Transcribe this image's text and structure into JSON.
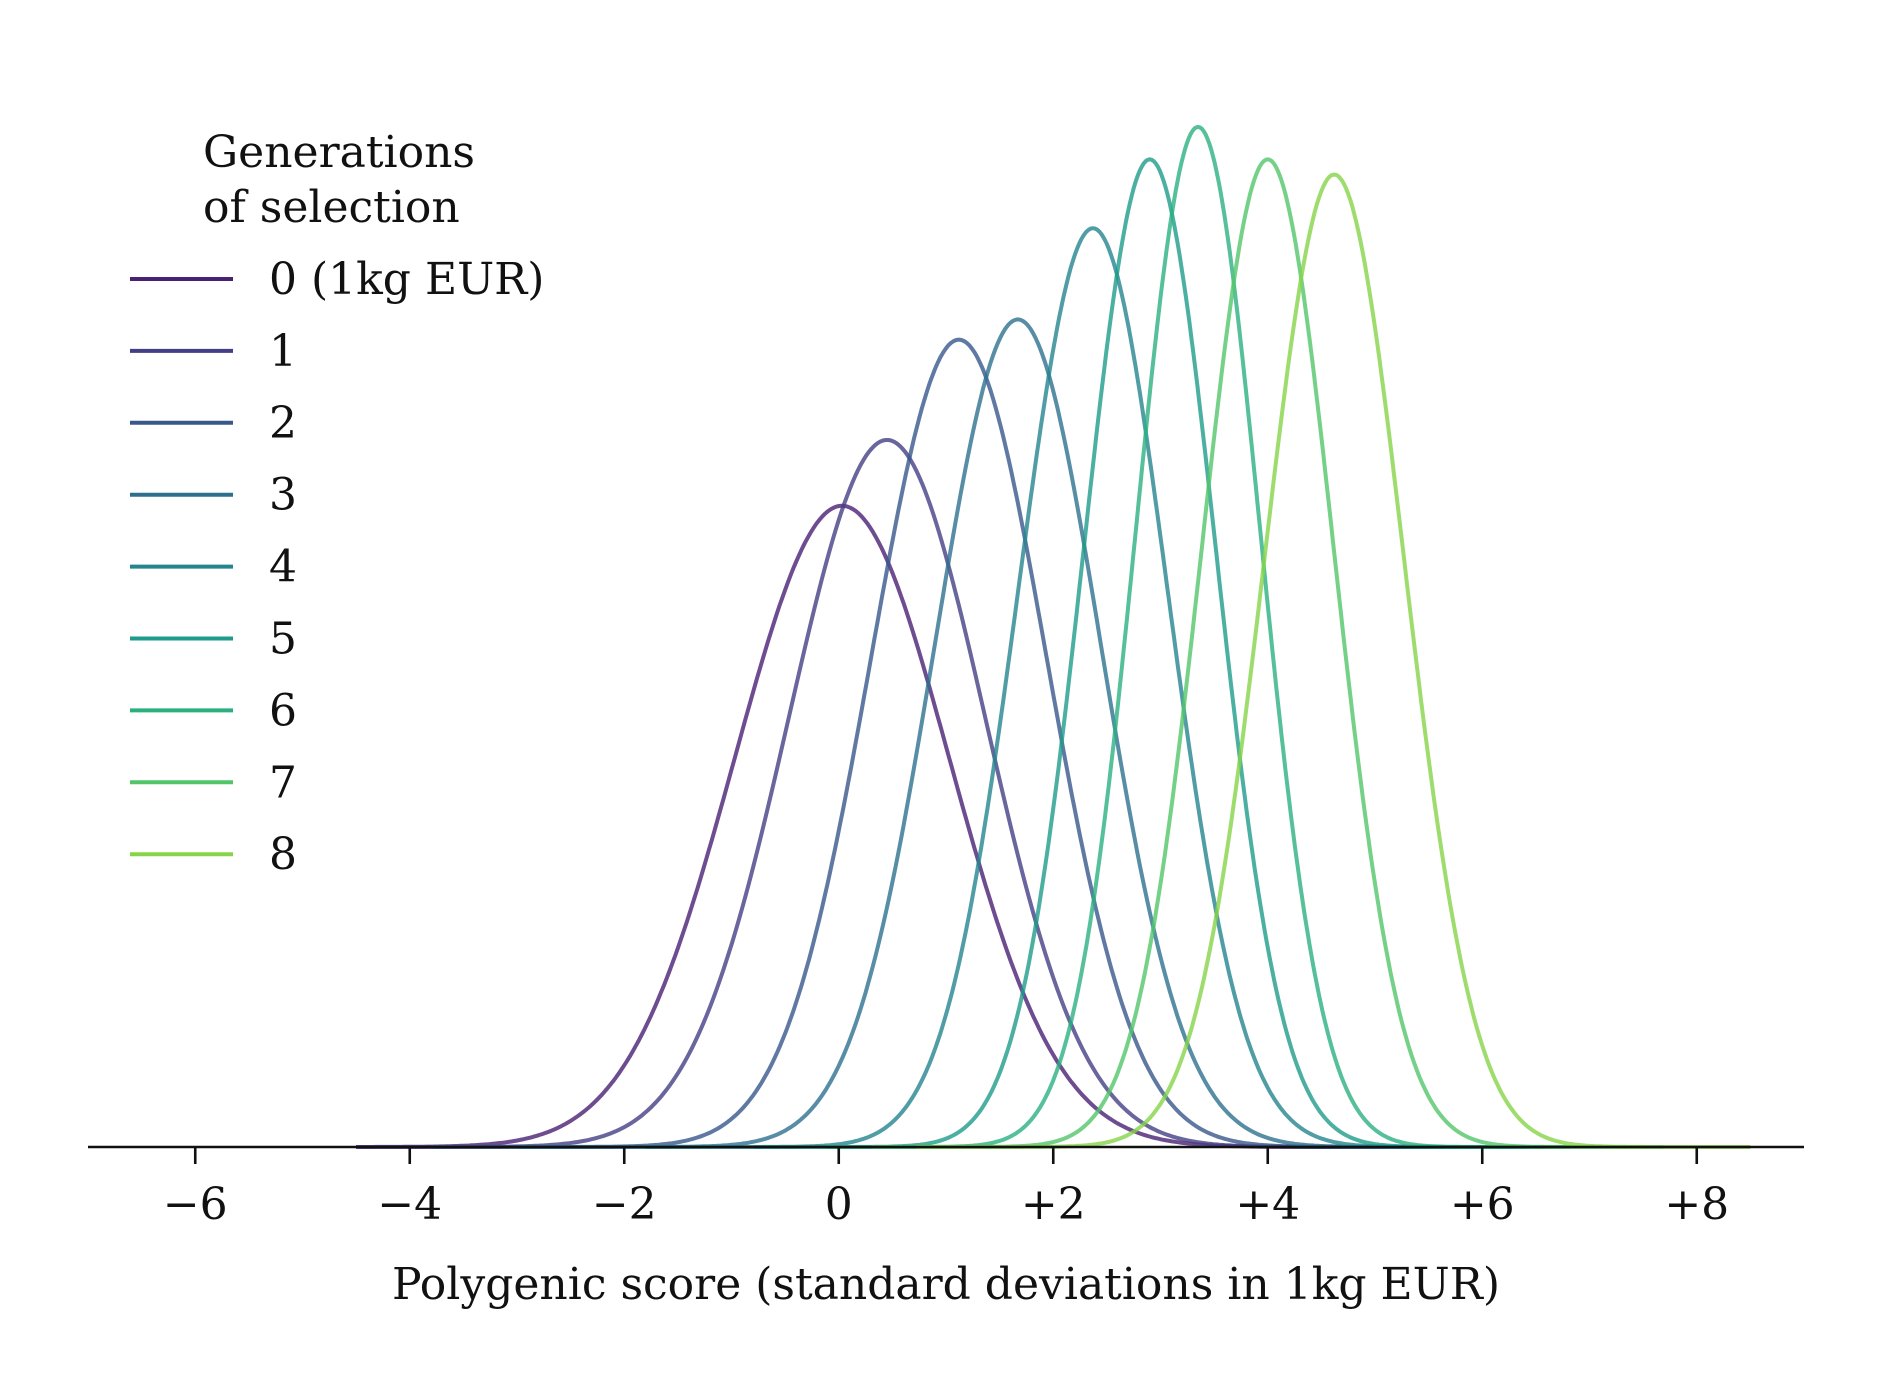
{
  "chart_data": {
    "type": "line",
    "title": "",
    "xlabel": "Polygenic score (standard deviations in 1kg EUR)",
    "ylabel": "",
    "xlim": [
      -7,
      9
    ],
    "x_ticks": [
      {
        "value": -6,
        "label": "−6"
      },
      {
        "value": -4,
        "label": "−4"
      },
      {
        "value": -2,
        "label": "−2"
      },
      {
        "value": 0,
        "label": "0"
      },
      {
        "value": 2,
        "label": "+2"
      },
      {
        "value": 4,
        "label": "+4"
      },
      {
        "value": 6,
        "label": "+6"
      },
      {
        "value": 8,
        "label": "+8"
      }
    ],
    "y_axis_visible": false,
    "grid": false,
    "legend": {
      "title_lines": [
        "Generations",
        "of selection"
      ],
      "placement": "upper-left"
    },
    "curve_shape": "normal density",
    "series": [
      {
        "name": "0 (1kg EUR)",
        "mean": 0.03,
        "sd": 1.0,
        "peak": 0.633,
        "color": "#482173"
      },
      {
        "name": "1",
        "mean": 0.45,
        "sd": 0.917,
        "peak": 0.698,
        "color": "#433e85"
      },
      {
        "name": "2",
        "mean": 1.12,
        "sd": 0.818,
        "peak": 0.797,
        "color": "#38588c"
      },
      {
        "name": "3",
        "mean": 1.67,
        "sd": 0.775,
        "peak": 0.817,
        "color": "#2d708e"
      },
      {
        "name": "4",
        "mean": 2.37,
        "sd": 0.696,
        "peak": 0.907,
        "color": "#25858e"
      },
      {
        "name": "5",
        "mean": 2.9,
        "sd": 0.615,
        "peak": 0.975,
        "color": "#1e9b8a"
      },
      {
        "name": "6",
        "mean": 3.35,
        "sd": 0.578,
        "peak": 1.007,
        "color": "#2ab07f"
      },
      {
        "name": "7",
        "mean": 4.0,
        "sd": 0.615,
        "peak": 0.975,
        "color": "#52c569"
      },
      {
        "name": "8",
        "mean": 4.62,
        "sd": 0.649,
        "peak": 0.96,
        "color": "#86d549"
      }
    ]
  }
}
